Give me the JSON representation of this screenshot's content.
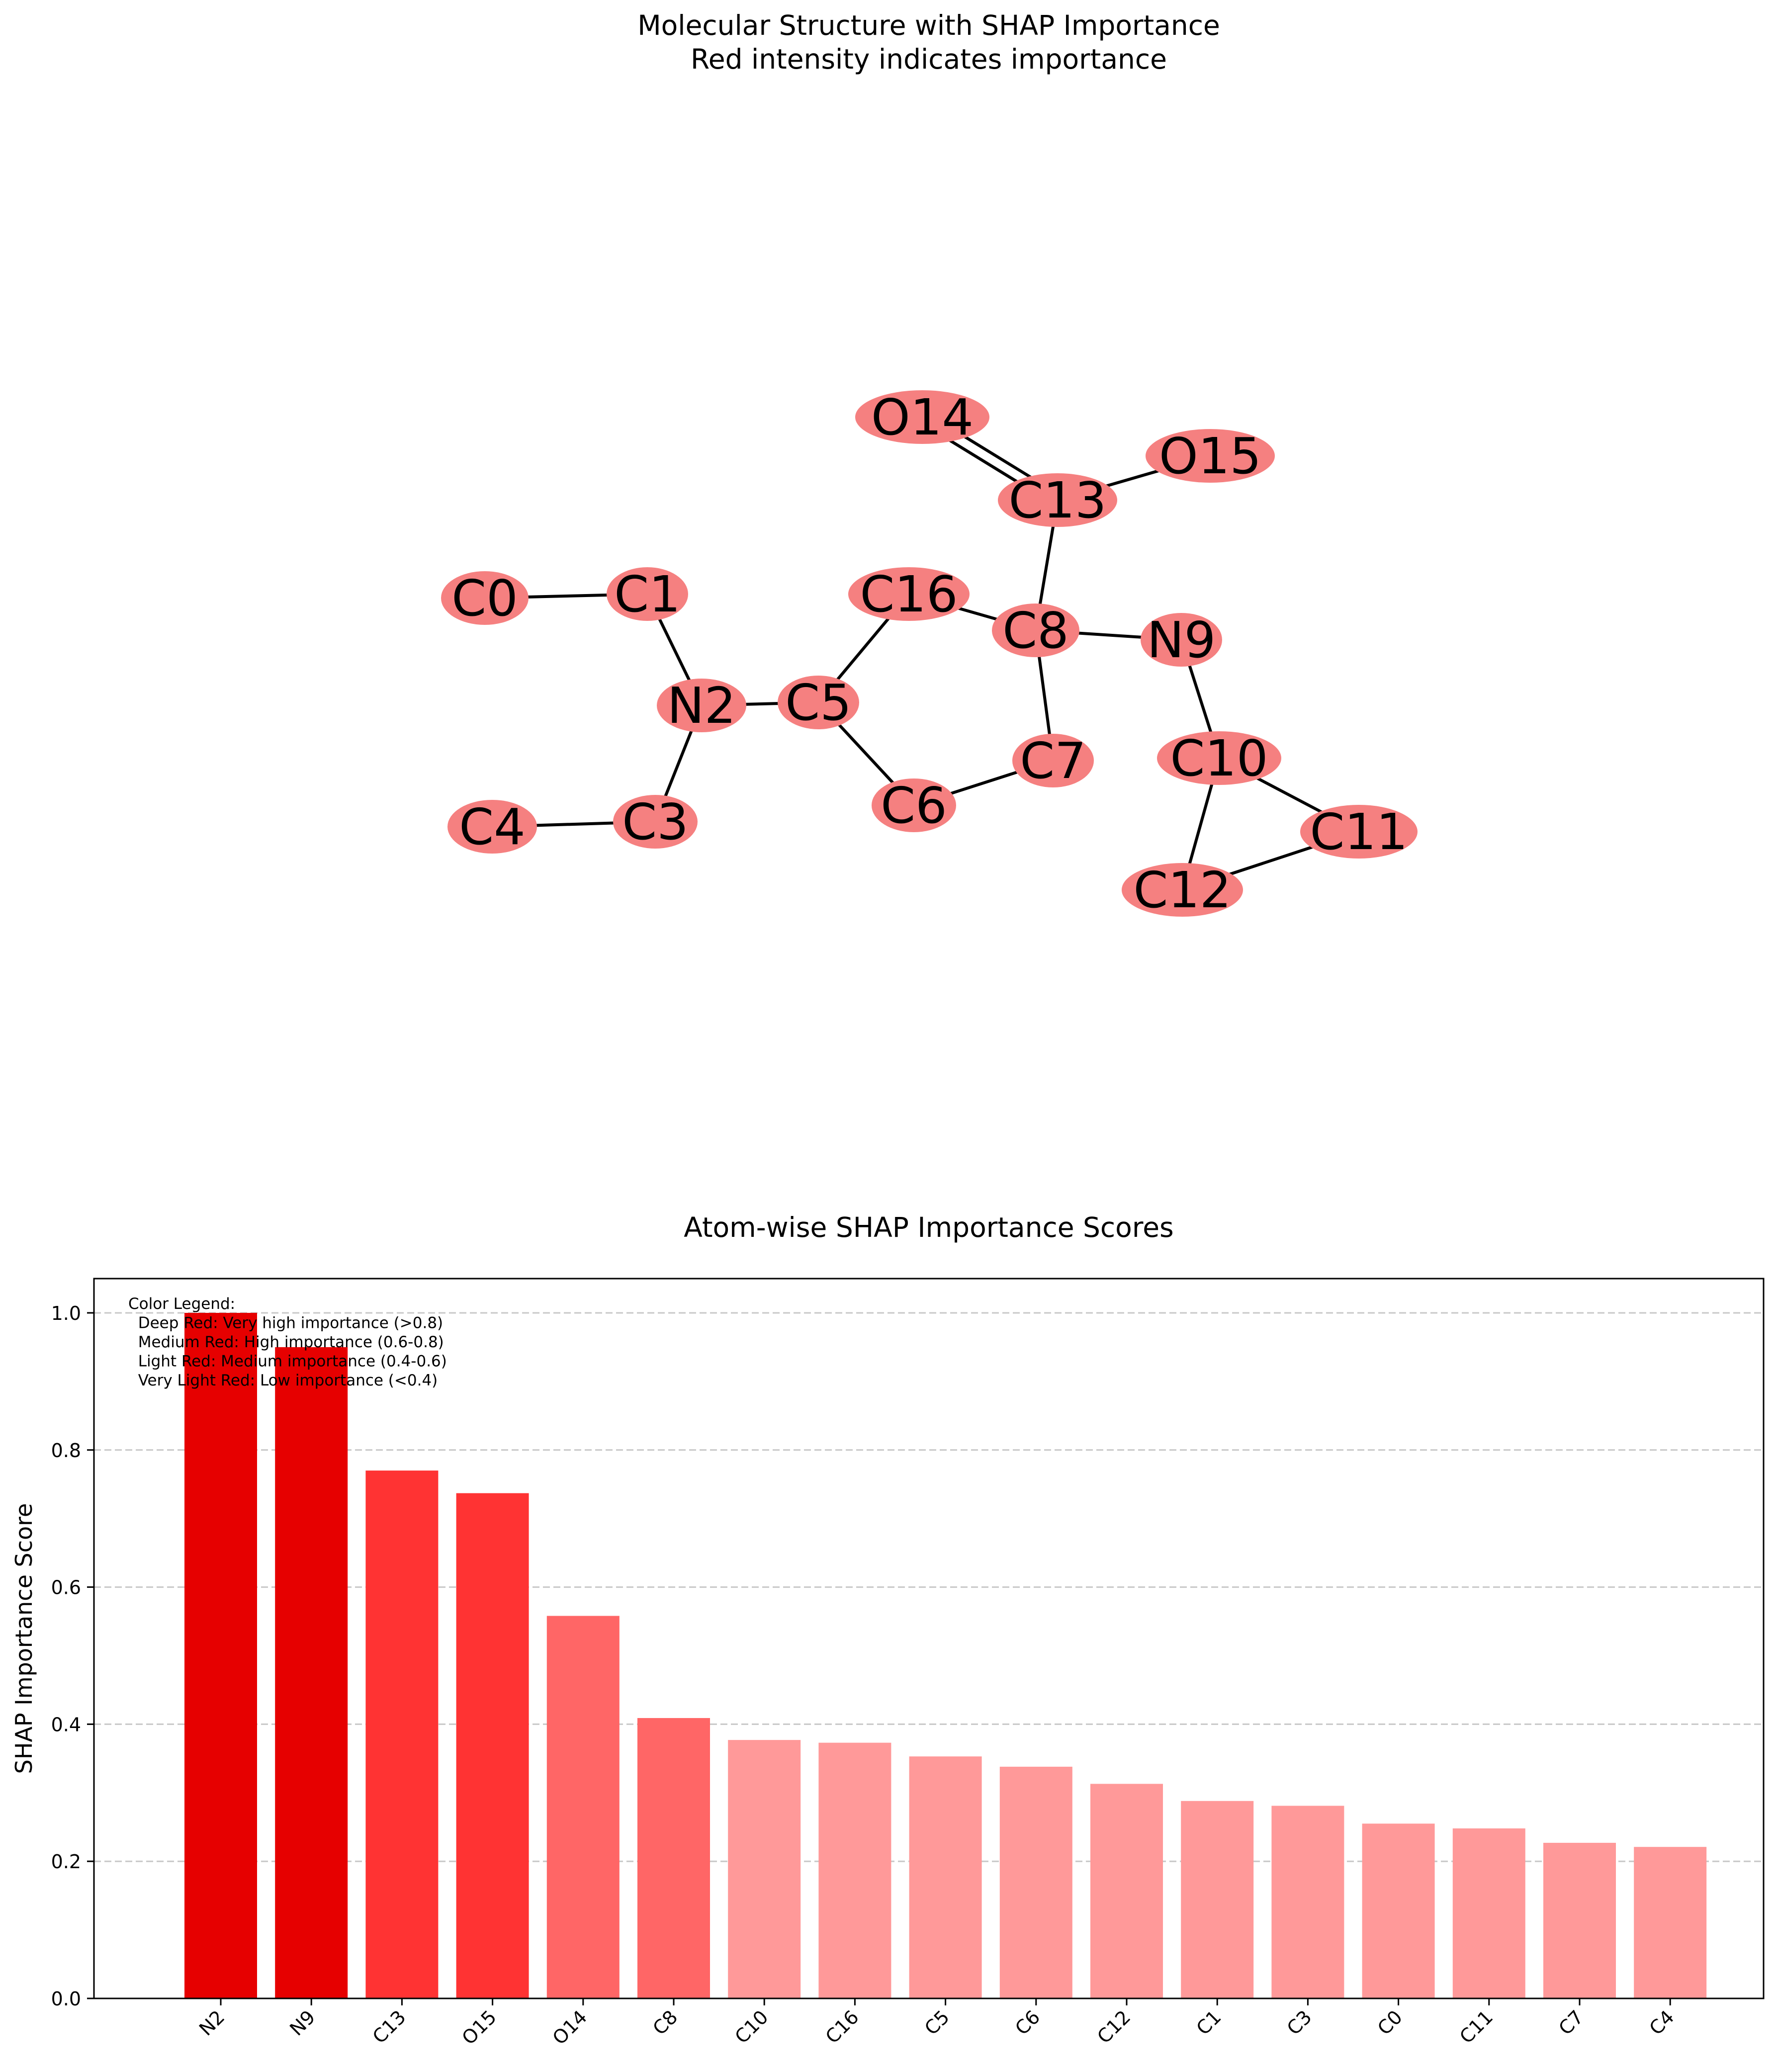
{
  "molecule_panel": {
    "title_line1": "Molecular Structure with SHAP Importance",
    "title_line2": "Red intensity indicates importance",
    "node_color": "#f58080",
    "atoms": [
      "C0",
      "C1",
      "N2",
      "C3",
      "C4",
      "C5",
      "C6",
      "C7",
      "C8",
      "N9",
      "C10",
      "C11",
      "C12",
      "C13",
      "O14",
      "O15",
      "C16"
    ],
    "bonds": [
      {
        "a": "C0",
        "b": "C1",
        "order": 1
      },
      {
        "a": "C1",
        "b": "N2",
        "order": 1
      },
      {
        "a": "N2",
        "b": "C3",
        "order": 1
      },
      {
        "a": "C3",
        "b": "C4",
        "order": 1
      },
      {
        "a": "N2",
        "b": "C5",
        "order": 1
      },
      {
        "a": "C5",
        "b": "C16",
        "order": 1
      },
      {
        "a": "C5",
        "b": "C6",
        "order": 1
      },
      {
        "a": "C6",
        "b": "C7",
        "order": 1
      },
      {
        "a": "C7",
        "b": "C8",
        "order": 1
      },
      {
        "a": "C16",
        "b": "C8",
        "order": 1
      },
      {
        "a": "C8",
        "b": "N9",
        "order": 1
      },
      {
        "a": "C8",
        "b": "C13",
        "order": 1
      },
      {
        "a": "C13",
        "b": "O14",
        "order": 2
      },
      {
        "a": "C13",
        "b": "O15",
        "order": 1
      },
      {
        "a": "N9",
        "b": "C10",
        "order": 1
      },
      {
        "a": "C10",
        "b": "C11",
        "order": 1
      },
      {
        "a": "C10",
        "b": "C12",
        "order": 1
      },
      {
        "a": "C11",
        "b": "C12",
        "order": 1
      }
    ]
  },
  "chart_data": {
    "type": "bar",
    "title": "Atom-wise SHAP Importance Scores",
    "xlabel": "",
    "ylabel": "SHAP Importance Score",
    "ylim": [
      0,
      1.05
    ],
    "yticks": [
      "0.0",
      "0.2",
      "0.4",
      "0.6",
      "0.8",
      "1.0"
    ],
    "grid": "y dashed",
    "categories": [
      "N2",
      "N9",
      "C13",
      "O15",
      "O14",
      "C8",
      "C10",
      "C16",
      "C5",
      "C6",
      "C12",
      "C1",
      "C3",
      "C0",
      "C11",
      "C7",
      "C4"
    ],
    "values": [
      1.0,
      0.95,
      0.77,
      0.737,
      0.558,
      0.409,
      0.377,
      0.373,
      0.353,
      0.338,
      0.313,
      0.288,
      0.281,
      0.255,
      0.248,
      0.227,
      0.221
    ],
    "colors": {
      "very_high": "#e60000",
      "high": "#ff3333",
      "medium": "#ff6666",
      "low": "#ff9999"
    },
    "legend": {
      "placement": "top-left",
      "lines": [
        "Color Legend:",
        "  Deep Red: Very high importance (>0.8)",
        "  Medium Red: High importance (0.6-0.8)",
        "  Light Red: Medium importance (0.4-0.6)",
        "  Very Light Red: Low importance (<0.4)"
      ]
    }
  }
}
